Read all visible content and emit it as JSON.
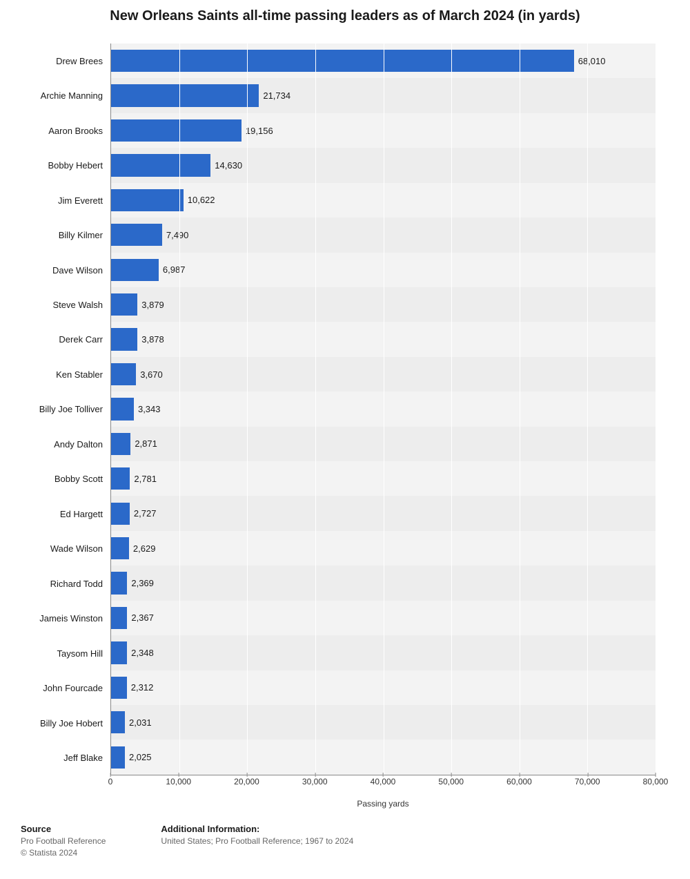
{
  "chart": {
    "type": "bar-horizontal",
    "title": "New Orleans Saints all-time passing leaders as of March 2024 (in yards)",
    "title_fontsize": 20,
    "x_axis_label": "Passing yards",
    "x_axis_fontsize": 12,
    "xlim_min": 0,
    "xlim_max": 80000,
    "xtick_step": 10000,
    "xticks": [
      {
        "value": 0,
        "label": "0"
      },
      {
        "value": 10000,
        "label": "10,000"
      },
      {
        "value": 20000,
        "label": "20,000"
      },
      {
        "value": 30000,
        "label": "30,000"
      },
      {
        "value": 40000,
        "label": "40,000"
      },
      {
        "value": 50000,
        "label": "50,000"
      },
      {
        "value": 60000,
        "label": "60,000"
      },
      {
        "value": 70000,
        "label": "70,000"
      },
      {
        "value": 80000,
        "label": "80,000"
      }
    ],
    "bar_color": "#2b69c9",
    "stripe_colors": [
      "#f3f3f3",
      "#ededed"
    ],
    "gridline_color": "#ffffff",
    "axis_color": "#888888",
    "text_color": "#1a1a1a",
    "y_label_fontsize": 13,
    "bar_label_fontsize": 13,
    "tick_fontsize": 12,
    "data": [
      {
        "name": "Drew Brees",
        "value": 68010,
        "label": "68,010"
      },
      {
        "name": "Archie Manning",
        "value": 21734,
        "label": "21,734"
      },
      {
        "name": "Aaron Brooks",
        "value": 19156,
        "label": "19,156"
      },
      {
        "name": "Bobby Hebert",
        "value": 14630,
        "label": "14,630"
      },
      {
        "name": "Jim Everett",
        "value": 10622,
        "label": "10,622"
      },
      {
        "name": "Billy Kilmer",
        "value": 7490,
        "label": "7,490"
      },
      {
        "name": "Dave Wilson",
        "value": 6987,
        "label": "6,987"
      },
      {
        "name": "Steve Walsh",
        "value": 3879,
        "label": "3,879"
      },
      {
        "name": "Derek Carr",
        "value": 3878,
        "label": "3,878"
      },
      {
        "name": "Ken Stabler",
        "value": 3670,
        "label": "3,670"
      },
      {
        "name": "Billy Joe Tolliver",
        "value": 3343,
        "label": "3,343"
      },
      {
        "name": "Andy Dalton",
        "value": 2871,
        "label": "2,871"
      },
      {
        "name": "Bobby Scott",
        "value": 2781,
        "label": "2,781"
      },
      {
        "name": "Ed Hargett",
        "value": 2727,
        "label": "2,727"
      },
      {
        "name": "Wade Wilson",
        "value": 2629,
        "label": "2,629"
      },
      {
        "name": "Richard Todd",
        "value": 2369,
        "label": "2,369"
      },
      {
        "name": "Jameis Winston",
        "value": 2367,
        "label": "2,367"
      },
      {
        "name": "Taysom Hill",
        "value": 2348,
        "label": "2,348"
      },
      {
        "name": "John Fourcade",
        "value": 2312,
        "label": "2,312"
      },
      {
        "name": "Billy Joe Hobert",
        "value": 2031,
        "label": "2,031"
      },
      {
        "name": "Jeff Blake",
        "value": 2025,
        "label": "2,025"
      }
    ]
  },
  "footer": {
    "source_heading": "Source",
    "source_text": "Pro Football Reference",
    "copyright": "© Statista 2024",
    "additional_heading": "Additional Information:",
    "additional_text": "United States; Pro Football Reference; 1967 to 2024",
    "fontsize_heading": 13,
    "fontsize_text": 12
  }
}
